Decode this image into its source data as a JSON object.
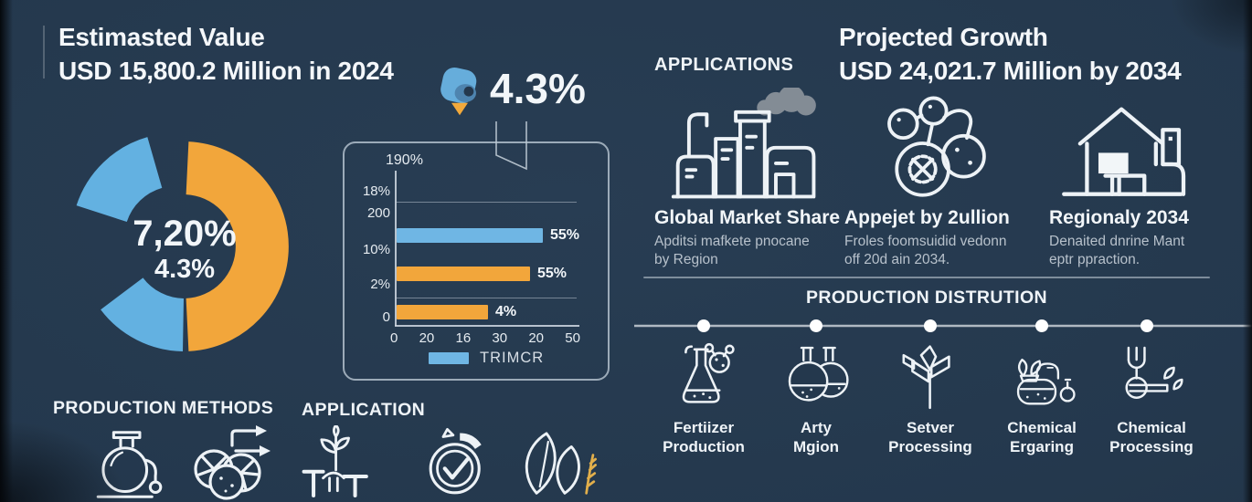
{
  "colors": {
    "background": "#24384D",
    "blue": "#63B1E1",
    "orange": "#F2A63B",
    "muted_text": "#B7C1CB"
  },
  "left": {
    "title_line1": "Estimasted Value",
    "title_line2": "USD 15,800.2 Million in 2024",
    "callout": {
      "value": "4.3%",
      "icon": "location-pin-icon"
    },
    "production_methods_label": "PRODUCTION METHODS",
    "application_label": "APPLICATION",
    "method_icons": [
      "flask-icon",
      "fruits-gears-icon"
    ],
    "application_icons": [
      "plant-icon",
      "stopwatch-check-icon",
      "leaves-icon"
    ]
  },
  "chart_data": [
    {
      "type": "bar",
      "orientation": "horizontal",
      "top_label": "190%",
      "y_axis_labels": [
        "18%",
        "200",
        "10%",
        "2%",
        "0"
      ],
      "x_axis_labels": [
        "0",
        "20",
        "16",
        "30",
        "20",
        "50"
      ],
      "bars": [
        {
          "label": "55%",
          "length_pct": 85,
          "color": "#6FB6E4"
        },
        {
          "label": "55%",
          "length_pct": 73,
          "color": "#F2A63B"
        },
        {
          "label": "4%",
          "length_pct": 50,
          "color": "#F2A63B"
        }
      ],
      "legend": {
        "label": "TRIMCR",
        "swatch_color": "#6FB6E4"
      },
      "grid": "partial-horizontal",
      "xlim": [
        0,
        50
      ]
    },
    {
      "type": "donut",
      "center_label": "7,20%",
      "center_sublabel": "4.3%",
      "segments": [
        {
          "name": "orange-right-half",
          "sweep_deg": 176,
          "color": "#F2A63B"
        },
        {
          "name": "blue-bottom-left",
          "sweep_deg": 52,
          "color": "#63B1E1"
        },
        {
          "name": "blue-upper-left-exploded",
          "sweep_deg": 56,
          "color": "#63B1E1"
        }
      ]
    }
  ],
  "right": {
    "applications_label": "APPLICATIONS",
    "title_line1": "Projected Growth",
    "title_line2": "USD 24,021.7 Million by 2034",
    "columns": [
      {
        "icon": "factory-icon",
        "title": "Global Market Share",
        "desc_line1": "Apditsi mafkete pnocane",
        "desc_line2": "by Region"
      },
      {
        "icon": "molecule-gear-icon",
        "title": "Appejet by 2ullion",
        "desc_line1": "Froles foomsuidid vedonn",
        "desc_line2": "off 20d ain 2034."
      },
      {
        "icon": "house-icon",
        "title": "Regionaly 2034",
        "desc_line1": "Denaited dnrine Mant",
        "desc_line2": "eptr ppraction."
      }
    ],
    "distribution": {
      "heading": "PRODUCTION DISTRUTION",
      "items": [
        {
          "icon": "flask-molecule-icon",
          "label_line1": "Fertiizer",
          "label_line2": "Production"
        },
        {
          "icon": "two-flasks-icon",
          "label_line1": "Arty",
          "label_line2": "Mgion"
        },
        {
          "icon": "plant-arrows-icon",
          "label_line1": "Setver",
          "label_line2": "Processing"
        },
        {
          "icon": "distiller-icon",
          "label_line1": "Chemical",
          "label_line2": "Ergaring"
        },
        {
          "icon": "fork-leaves-icon",
          "label_line1": "Chemical",
          "label_line2": "Processing"
        }
      ]
    }
  }
}
